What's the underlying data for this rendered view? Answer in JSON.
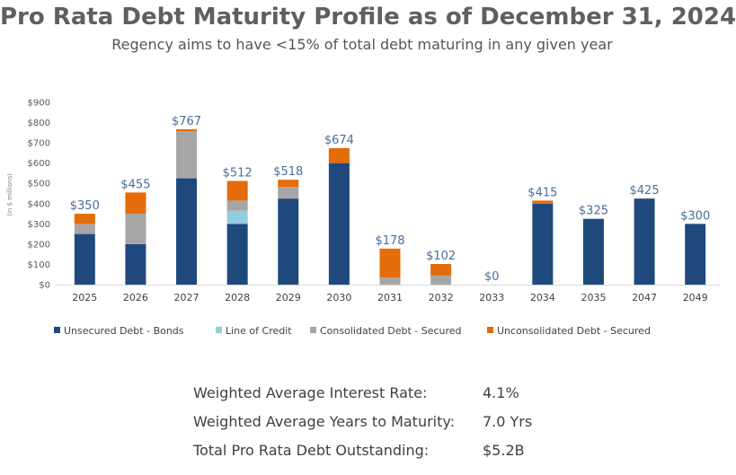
{
  "header": {
    "title": "Pro Rata Debt Maturity Profile as of December 31, 2024",
    "subtitle": "Regency aims to have <15% of total debt maturing in any given year"
  },
  "chart_data": {
    "type": "bar",
    "stacked": true,
    "ylabel": "(in $ millions)",
    "ylim": [
      0,
      900
    ],
    "yticks": [
      "$0",
      "$100",
      "$200",
      "$300",
      "$400",
      "$500",
      "$600",
      "$700",
      "$800",
      "$900"
    ],
    "grid": false,
    "legend_position": "bottom",
    "categories": [
      "2025",
      "2026",
      "2027",
      "2028",
      "2029",
      "2030",
      "2031",
      "2032",
      "2033",
      "2034",
      "2035",
      "2047",
      "2049"
    ],
    "totals": [
      "$350",
      "$455",
      "$767",
      "$512",
      "$518",
      "$674",
      "$178",
      "$102",
      "$0",
      "$415",
      "$325",
      "$425",
      "$300"
    ],
    "series": [
      {
        "name": "Unsecured Debt - Bonds",
        "color": "#1f497d",
        "values": [
          250,
          200,
          525,
          300,
          425,
          600,
          0,
          0,
          0,
          400,
          325,
          425,
          300
        ]
      },
      {
        "name": "Line of Credit",
        "color": "#92cddc",
        "values": [
          0,
          0,
          0,
          65,
          0,
          0,
          0,
          0,
          0,
          0,
          0,
          0,
          0
        ]
      },
      {
        "name": "Consolidated Debt - Secured",
        "color": "#a6a6a6",
        "values": [
          50,
          150,
          232,
          50,
          58,
          0,
          35,
          45,
          0,
          0,
          0,
          0,
          0
        ]
      },
      {
        "name": "Unconsolidated Debt - Secured",
        "color": "#e46c0a",
        "values": [
          50,
          105,
          10,
          97,
          35,
          74,
          143,
          57,
          0,
          15,
          0,
          0,
          0
        ]
      }
    ]
  },
  "stats": [
    {
      "label": "Weighted Average Interest Rate:",
      "value": "4.1%"
    },
    {
      "label": "Weighted Average Years to Maturity:",
      "value": "7.0 Yrs"
    },
    {
      "label": "Total Pro Rata Debt Outstanding:",
      "value": "$5.2B"
    }
  ]
}
